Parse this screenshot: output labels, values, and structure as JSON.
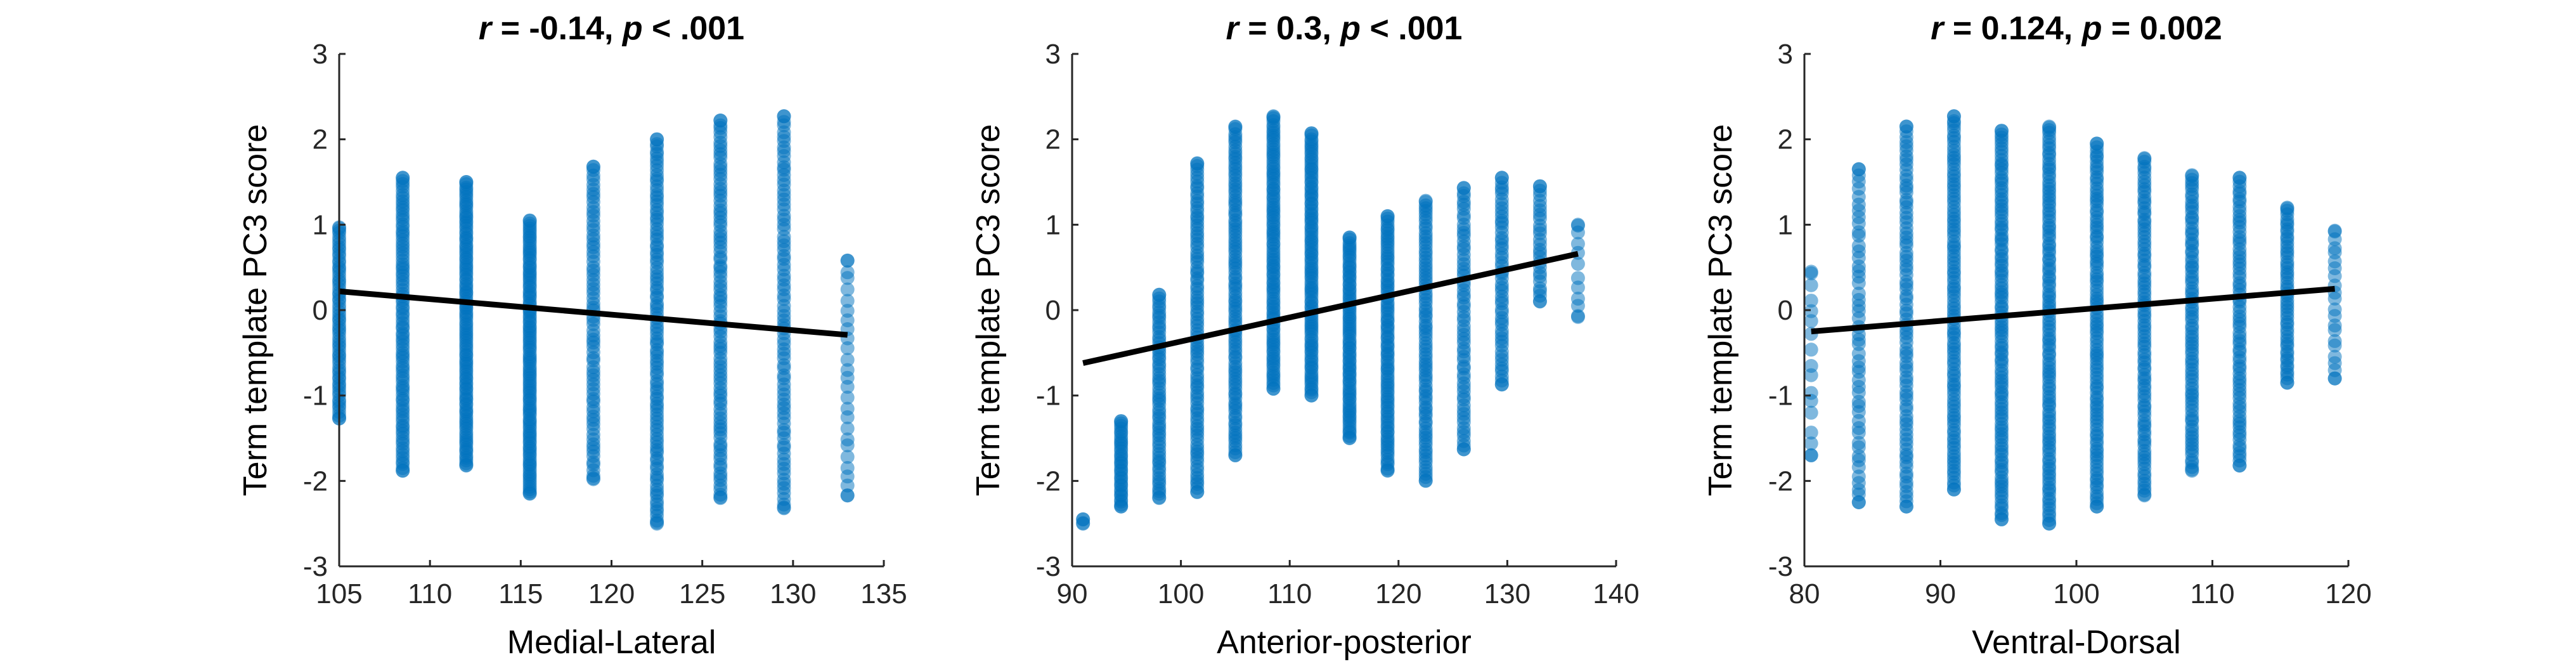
{
  "style": {
    "point_color": "#0072BD",
    "fit_color": "#000000",
    "axis_color": "#262626"
  },
  "chart_data": [
    {
      "type": "scatter",
      "title_parts": [
        {
          "text": "r",
          "italic": true
        },
        {
          "text": " = -0.14, ",
          "italic": false
        },
        {
          "text": "p",
          "italic": true
        },
        {
          "text": " < .001",
          "italic": false
        }
      ],
      "xlabel": "Medial-Lateral",
      "ylabel": "Term template PC3 score",
      "xlim": [
        105,
        135
      ],
      "ylim": [
        -3,
        3
      ],
      "xticks": [
        "105",
        "110",
        "115",
        "120",
        "125",
        "130",
        "135"
      ],
      "yticks": [
        "-3",
        "-2",
        "-1",
        "0",
        "1",
        "2",
        "3"
      ],
      "grid": false,
      "fit_line": {
        "x": [
          105,
          133
        ],
        "y": [
          0.22,
          -0.29
        ]
      },
      "columns": [
        {
          "x": 105,
          "ymin": -1.27,
          "ymax": 0.97,
          "n": 60
        },
        {
          "x": 108.5,
          "ymin": -1.88,
          "ymax": 1.55,
          "n": 90
        },
        {
          "x": 112,
          "ymin": -1.82,
          "ymax": 1.5,
          "n": 110
        },
        {
          "x": 115.5,
          "ymin": -2.15,
          "ymax": 1.05,
          "n": 110
        },
        {
          "x": 119,
          "ymin": -1.98,
          "ymax": 1.68,
          "n": 70
        },
        {
          "x": 122.5,
          "ymin": -2.5,
          "ymax": 2.0,
          "n": 100
        },
        {
          "x": 126,
          "ymin": -2.2,
          "ymax": 2.22,
          "n": 90
        },
        {
          "x": 129.5,
          "ymin": -2.32,
          "ymax": 2.27,
          "n": 80
        },
        {
          "x": 133,
          "ymin": -2.17,
          "ymax": 0.58,
          "n": 25
        }
      ]
    },
    {
      "type": "scatter",
      "title_parts": [
        {
          "text": "r",
          "italic": true
        },
        {
          "text": " = 0.3, ",
          "italic": false
        },
        {
          "text": "p",
          "italic": true
        },
        {
          "text": " < .001",
          "italic": false
        }
      ],
      "xlabel": "Anterior-posterior",
      "ylabel": "Term template PC3 score",
      "xlim": [
        90,
        140
      ],
      "ylim": [
        -3,
        3
      ],
      "xticks": [
        "90",
        "100",
        "110",
        "120",
        "130",
        "140"
      ],
      "yticks": [
        "-3",
        "-2",
        "-1",
        "0",
        "1",
        "2",
        "3"
      ],
      "grid": false,
      "fit_line": {
        "x": [
          91,
          136.5
        ],
        "y": [
          -0.62,
          0.66
        ]
      },
      "columns": [
        {
          "x": 91,
          "ymin": -2.5,
          "ymax": -2.45,
          "n": 2
        },
        {
          "x": 94.5,
          "ymin": -2.3,
          "ymax": -1.3,
          "n": 35
        },
        {
          "x": 98,
          "ymin": -2.2,
          "ymax": 0.18,
          "n": 60
        },
        {
          "x": 101.5,
          "ymin": -2.13,
          "ymax": 1.72,
          "n": 90
        },
        {
          "x": 105,
          "ymin": -1.7,
          "ymax": 2.15,
          "n": 100
        },
        {
          "x": 108.5,
          "ymin": -0.92,
          "ymax": 2.27,
          "n": 100
        },
        {
          "x": 112,
          "ymin": -1.0,
          "ymax": 2.07,
          "n": 100
        },
        {
          "x": 115.5,
          "ymin": -1.5,
          "ymax": 0.85,
          "n": 80
        },
        {
          "x": 119,
          "ymin": -1.88,
          "ymax": 1.1,
          "n": 90
        },
        {
          "x": 122.5,
          "ymin": -2.0,
          "ymax": 1.28,
          "n": 80
        },
        {
          "x": 126,
          "ymin": -1.63,
          "ymax": 1.43,
          "n": 60
        },
        {
          "x": 129.5,
          "ymin": -0.87,
          "ymax": 1.55,
          "n": 50
        },
        {
          "x": 133,
          "ymin": 0.1,
          "ymax": 1.45,
          "n": 25
        },
        {
          "x": 136.5,
          "ymin": -0.08,
          "ymax": 1.0,
          "n": 10
        }
      ]
    },
    {
      "type": "scatter",
      "title_parts": [
        {
          "text": "r",
          "italic": true
        },
        {
          "text": " = 0.124, ",
          "italic": false
        },
        {
          "text": "p",
          "italic": true
        },
        {
          "text": " = 0.002",
          "italic": false
        }
      ],
      "xlabel": "Ventral-Dorsal",
      "ylabel": "Term template PC3 score",
      "xlim": [
        80,
        120
      ],
      "ylim": [
        -3,
        3
      ],
      "xticks": [
        "80",
        "90",
        "100",
        "110",
        "120"
      ],
      "yticks": [
        "-3",
        "-2",
        "-1",
        "0",
        "1",
        "2",
        "3"
      ],
      "grid": false,
      "fit_line": {
        "x": [
          80.5,
          119
        ],
        "y": [
          -0.25,
          0.25
        ]
      },
      "columns": [
        {
          "x": 80.5,
          "ymin": -1.7,
          "ymax": 0.45,
          "n": 15
        },
        {
          "x": 84,
          "ymin": -2.25,
          "ymax": 1.65,
          "n": 50
        },
        {
          "x": 87.5,
          "ymin": -2.3,
          "ymax": 2.15,
          "n": 80
        },
        {
          "x": 91,
          "ymin": -2.1,
          "ymax": 2.27,
          "n": 100
        },
        {
          "x": 94.5,
          "ymin": -2.45,
          "ymax": 2.1,
          "n": 110
        },
        {
          "x": 98,
          "ymin": -2.5,
          "ymax": 2.15,
          "n": 110
        },
        {
          "x": 101.5,
          "ymin": -2.3,
          "ymax": 1.95,
          "n": 100
        },
        {
          "x": 105,
          "ymin": -2.17,
          "ymax": 1.78,
          "n": 90
        },
        {
          "x": 108.5,
          "ymin": -1.88,
          "ymax": 1.58,
          "n": 80
        },
        {
          "x": 112,
          "ymin": -1.82,
          "ymax": 1.55,
          "n": 70
        },
        {
          "x": 115.5,
          "ymin": -0.85,
          "ymax": 1.2,
          "n": 50
        },
        {
          "x": 119,
          "ymin": -0.8,
          "ymax": 0.93,
          "n": 20
        }
      ]
    }
  ]
}
